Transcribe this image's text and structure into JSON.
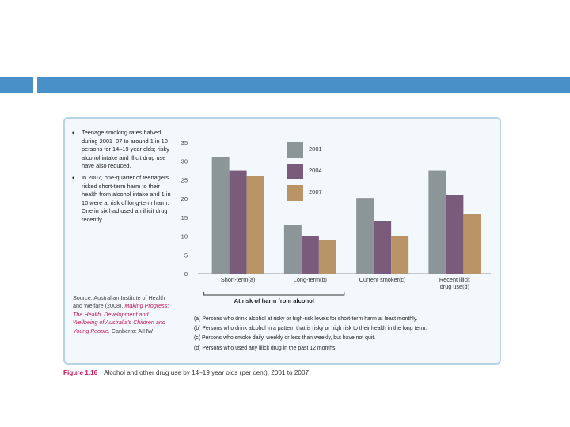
{
  "slide": {
    "accent": "#4a90c8"
  },
  "bullets": [
    "Teenage smoking rates halved during 2001–07 to around 1 in 10 persons for 14–19 year olds; risky alcohol intake and illicit drug use have also reduced.",
    "In 2007, one-quarter of teenagers risked short-term harm to their health from alcohol intake and 1 in 10 were at risk of long-term harm. One in six had used an illicit drug recently."
  ],
  "source": {
    "prefix": "Source: Australian Institute of Health and Welfare (2008),",
    "publication": "Making Progress: The Health, Development and Wellbeing of Australia's Children and Young People.",
    "suffix": "Canberra: AIHW"
  },
  "notes": [
    "(a) Persons who drink alcohol at risky or high-risk levels for short-term harm at least monthly.",
    "(b) Persons who drink alcohol in a pattern that is risky or high risk to their health in the long term.",
    "(c) Persons who smoke daily, weekly or less than weekly, but have not quit.",
    "(d) Persons who used any illicit drug in the past 12 months."
  ],
  "caption": {
    "figure": "Figure 1.16",
    "text": "Alcohol and other drug use by 14–19 year olds (per cent), 2001 to 2007"
  },
  "chart_data": {
    "type": "bar",
    "categories": [
      "Short-term(a)",
      "Long-term(b)",
      "Current smoker(c)",
      "Recent illicit drug use(d)"
    ],
    "category_lines": [
      [
        "Short-term(a)"
      ],
      [
        "Long-term(b)"
      ],
      [
        "Current smoker(c)"
      ],
      [
        "Recent illicit",
        "drug use(d)"
      ]
    ],
    "series": [
      {
        "name": "2001",
        "values": [
          31,
          13,
          20,
          27.5
        ],
        "color": "#8c9598"
      },
      {
        "name": "2004",
        "values": [
          27.5,
          10,
          14,
          21
        ],
        "color": "#7b5b7c"
      },
      {
        "name": "2007",
        "values": [
          26,
          9,
          10,
          16
        ],
        "color": "#b99466"
      }
    ],
    "yticks": [
      0,
      5,
      10,
      15,
      20,
      25,
      30,
      35
    ],
    "ylim": [
      0,
      35
    ],
    "group_label": "At risk of harm from alcohol",
    "legend_position": "top-center"
  }
}
